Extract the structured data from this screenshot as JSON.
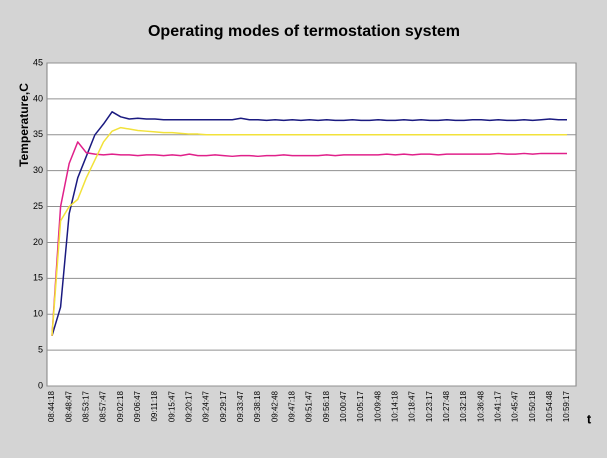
{
  "chart_data": {
    "type": "line",
    "title": "Operating modes of termostation system",
    "y_label": "Temperature,C",
    "x_label": "t",
    "categories": [
      "08:44:18",
      null,
      "08:48:47",
      null,
      "08:53:17",
      null,
      "08:57:47",
      null,
      "09:02:18",
      null,
      "09:06:47",
      null,
      "09:11:18",
      null,
      "09:15:47",
      null,
      "09:20:17",
      null,
      "09:24:47",
      null,
      "09:29:17",
      null,
      "09:33:47",
      null,
      "09:38:18",
      null,
      "09:42:48",
      null,
      "09:47:18",
      null,
      "09:51:47",
      null,
      "09:56:18",
      null,
      "10:00:47",
      null,
      "10:05:17",
      null,
      "10:09:48",
      null,
      "10:14:18",
      null,
      "10:18:47",
      null,
      "10:23:17",
      null,
      "10:27:48",
      null,
      "10:32:18",
      null,
      "10:36:48",
      null,
      "10:41:17",
      null,
      "10:45:47",
      null,
      "10:50:18",
      null,
      "10:54:48",
      null,
      "10:59:17"
    ],
    "series": [
      {
        "color": "#1a1a80",
        "values": [
          7,
          11,
          24,
          29,
          32,
          35,
          36.5,
          38.2,
          37.5,
          37.2,
          37.3,
          37.2,
          37.2,
          37.1,
          37.1,
          37.1,
          37.1,
          37.1,
          37.1,
          37.1,
          37.1,
          37.1,
          37.3,
          37.1,
          37.1,
          37,
          37.1,
          37,
          37.1,
          37,
          37.1,
          37,
          37.1,
          37,
          37,
          37.1,
          37,
          37,
          37.1,
          37,
          37,
          37.1,
          37,
          37.1,
          37,
          37,
          37.1,
          37,
          37,
          37.1,
          37.1,
          37,
          37.1,
          37,
          37,
          37.1,
          37,
          37.1,
          37.2,
          37.1,
          37.1
        ]
      },
      {
        "color": "#e0208a",
        "values": [
          7,
          25,
          31,
          34,
          32.5,
          32.3,
          32.2,
          32.3,
          32.2,
          32.2,
          32.1,
          32.2,
          32.2,
          32.1,
          32.2,
          32.1,
          32.3,
          32.1,
          32.1,
          32.2,
          32.1,
          32,
          32.1,
          32.1,
          32,
          32.1,
          32.1,
          32.2,
          32.1,
          32.1,
          32.1,
          32.1,
          32.2,
          32.1,
          32.2,
          32.2,
          32.2,
          32.2,
          32.2,
          32.3,
          32.2,
          32.3,
          32.2,
          32.3,
          32.3,
          32.2,
          32.3,
          32.3,
          32.3,
          32.3,
          32.3,
          32.3,
          32.4,
          32.3,
          32.3,
          32.4,
          32.3,
          32.4,
          32.4,
          32.4,
          32.4
        ]
      },
      {
        "color": "#f2e23a",
        "values": [
          7,
          23,
          25,
          26,
          29,
          31.5,
          34,
          35.5,
          36,
          35.8,
          35.6,
          35.5,
          35.4,
          35.3,
          35.3,
          35.2,
          35.1,
          35.1,
          35,
          35,
          35,
          35,
          35,
          35,
          35,
          35,
          35,
          35,
          35,
          35,
          35,
          35,
          35,
          35,
          35,
          35,
          35,
          35,
          35,
          35,
          35,
          35,
          35,
          35,
          35,
          35,
          35,
          35,
          35,
          35,
          35,
          35,
          35,
          35,
          35,
          35,
          35,
          35,
          35,
          35,
          35
        ]
      }
    ],
    "ylim": [
      0,
      45
    ],
    "yticks": [
      0,
      5,
      10,
      15,
      20,
      25,
      30,
      35,
      40,
      45
    ],
    "grid": true
  }
}
